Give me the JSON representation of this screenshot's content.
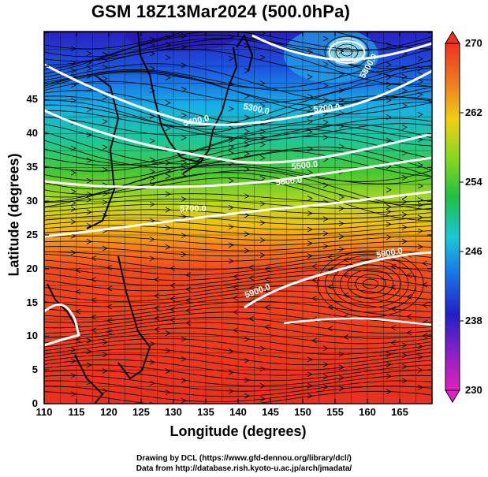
{
  "title": "GSM 18Z13Mar2024 (500.0hPa)",
  "axes": {
    "xlabel": "Longitude (degrees)",
    "ylabel": "Latitude  (degrees)",
    "xticks": [
      "110",
      "115",
      "120",
      "125",
      "130",
      "135",
      "140",
      "145",
      "150",
      "155",
      "160",
      "165"
    ],
    "yticks": [
      "0",
      "5",
      "10",
      "15",
      "20",
      "25",
      "30",
      "35",
      "40",
      "45"
    ]
  },
  "colorbar": {
    "min_label": "230",
    "max_label": "270",
    "ticks": [
      "230",
      "238",
      "246",
      "254",
      "262",
      "270"
    ]
  },
  "contour_labels": [
    "5400.0",
    "5300.0",
    "5200.0",
    "5500.0",
    "5600.0",
    "5700.0",
    "5800.0",
    "5900.0",
    "5900.0"
  ],
  "credits": {
    "line1": "Drawing by DCL (https://www.gfd-dennou.org/library/dcl/)",
    "line2": "Data from http://database.rish.kyoto-u.ac.jp/arch/jmadata/"
  },
  "colors": {
    "cold": "#2020d0",
    "mid": "#20c040",
    "warm": "#e83020",
    "contour": "#ffffff"
  }
}
